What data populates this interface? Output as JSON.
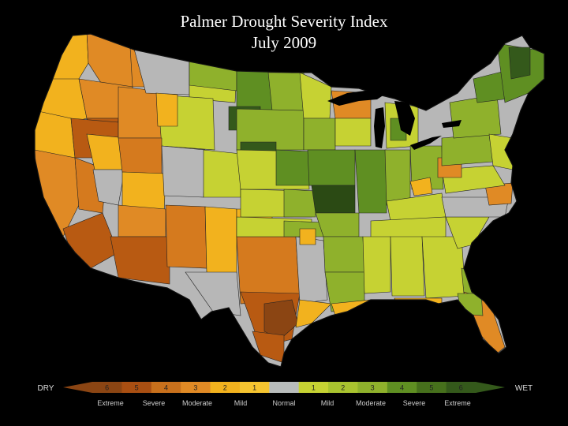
{
  "title": {
    "line1": "Palmer Drought Severity Index",
    "line2": "July 2009"
  },
  "colors": {
    "background": "#000000",
    "no_data": "#b7b7b7",
    "normal": "#b9bdbc",
    "dry_extreme": "#8b4513",
    "dry_severe": "#b85a12",
    "dry_moderate": "#d57a1e",
    "dry_severe_alt": "#c8701c",
    "dry_moderate_alt": "#e08a25",
    "dry_mild": "#f2b21e",
    "wet_mild": "#c6d233",
    "wet_moderate": "#8fb12c",
    "wet_severe": "#5f8f22",
    "wet_extreme": "#34591b",
    "wet_extreme_alt": "#2b4a14",
    "border": "#222222"
  },
  "legend": {
    "end_dry": "DRY",
    "end_wet": "WET",
    "bins": [
      {
        "num": "6",
        "color": "#8b4513"
      },
      {
        "num": "5",
        "color": "#a94f12"
      },
      {
        "num": "4",
        "color": "#c8701c"
      },
      {
        "num": "3",
        "color": "#e08a25"
      },
      {
        "num": "2",
        "color": "#f2b21e"
      },
      {
        "num": "1",
        "color": "#f5c430"
      },
      {
        "num": "",
        "color": "#b9bdbc"
      },
      {
        "num": "1",
        "color": "#c6d233"
      },
      {
        "num": "2",
        "color": "#a9c32f"
      },
      {
        "num": "3",
        "color": "#8fb12c"
      },
      {
        "num": "4",
        "color": "#5f8f22"
      },
      {
        "num": "5",
        "color": "#46701c"
      },
      {
        "num": "6",
        "color": "#34591b"
      }
    ],
    "category_labels": [
      "Extreme",
      "Severe",
      "Moderate",
      "Mild",
      "Normal",
      "Mild",
      "Moderate",
      "Severe",
      "Extreme"
    ]
  }
}
